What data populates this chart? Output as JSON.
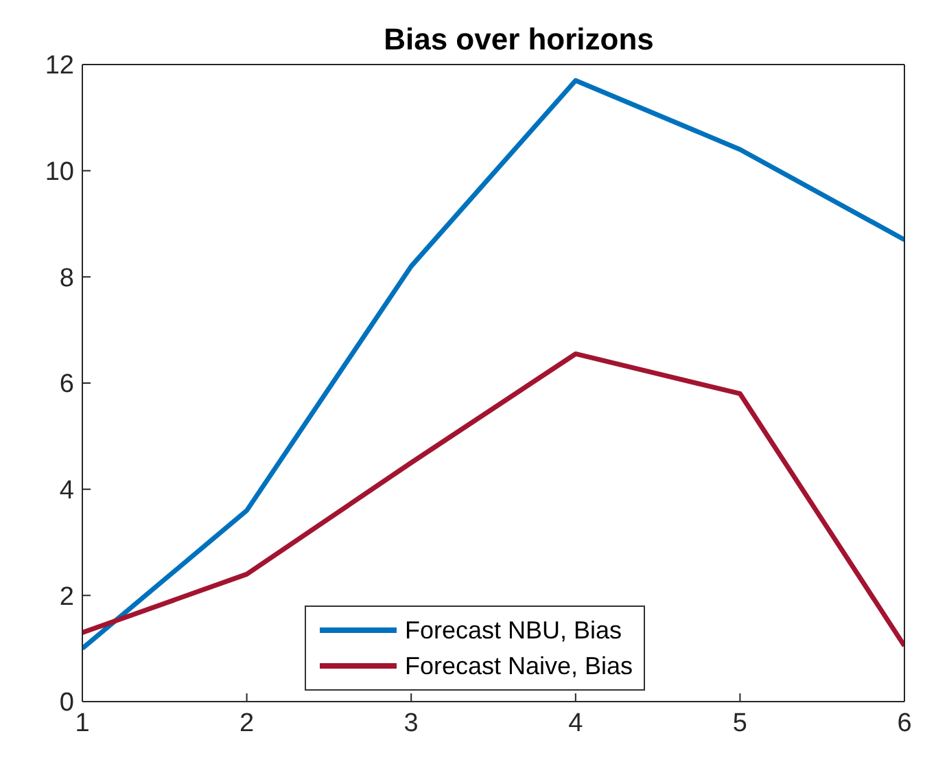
{
  "chart_data": {
    "type": "line",
    "title": "Bias over horizons",
    "x": [
      1,
      2,
      3,
      4,
      5,
      6
    ],
    "series": [
      {
        "name": "Forecast NBU, Bias",
        "color": "#0072bd",
        "values": [
          1.0,
          3.6,
          8.2,
          11.7,
          10.4,
          8.7
        ]
      },
      {
        "name": "Forecast Naive, Bias",
        "color": "#a2142f",
        "values": [
          1.3,
          2.4,
          4.5,
          6.55,
          5.8,
          1.05
        ]
      }
    ],
    "xlim": [
      1,
      6
    ],
    "xticks": [
      1,
      2,
      3,
      4,
      5,
      6
    ],
    "ylim": [
      0,
      12
    ],
    "yticks": [
      0,
      2,
      4,
      6,
      8,
      10,
      12
    ],
    "grid": false,
    "legend": "bottom",
    "marker": "none",
    "line_style": "solid"
  }
}
